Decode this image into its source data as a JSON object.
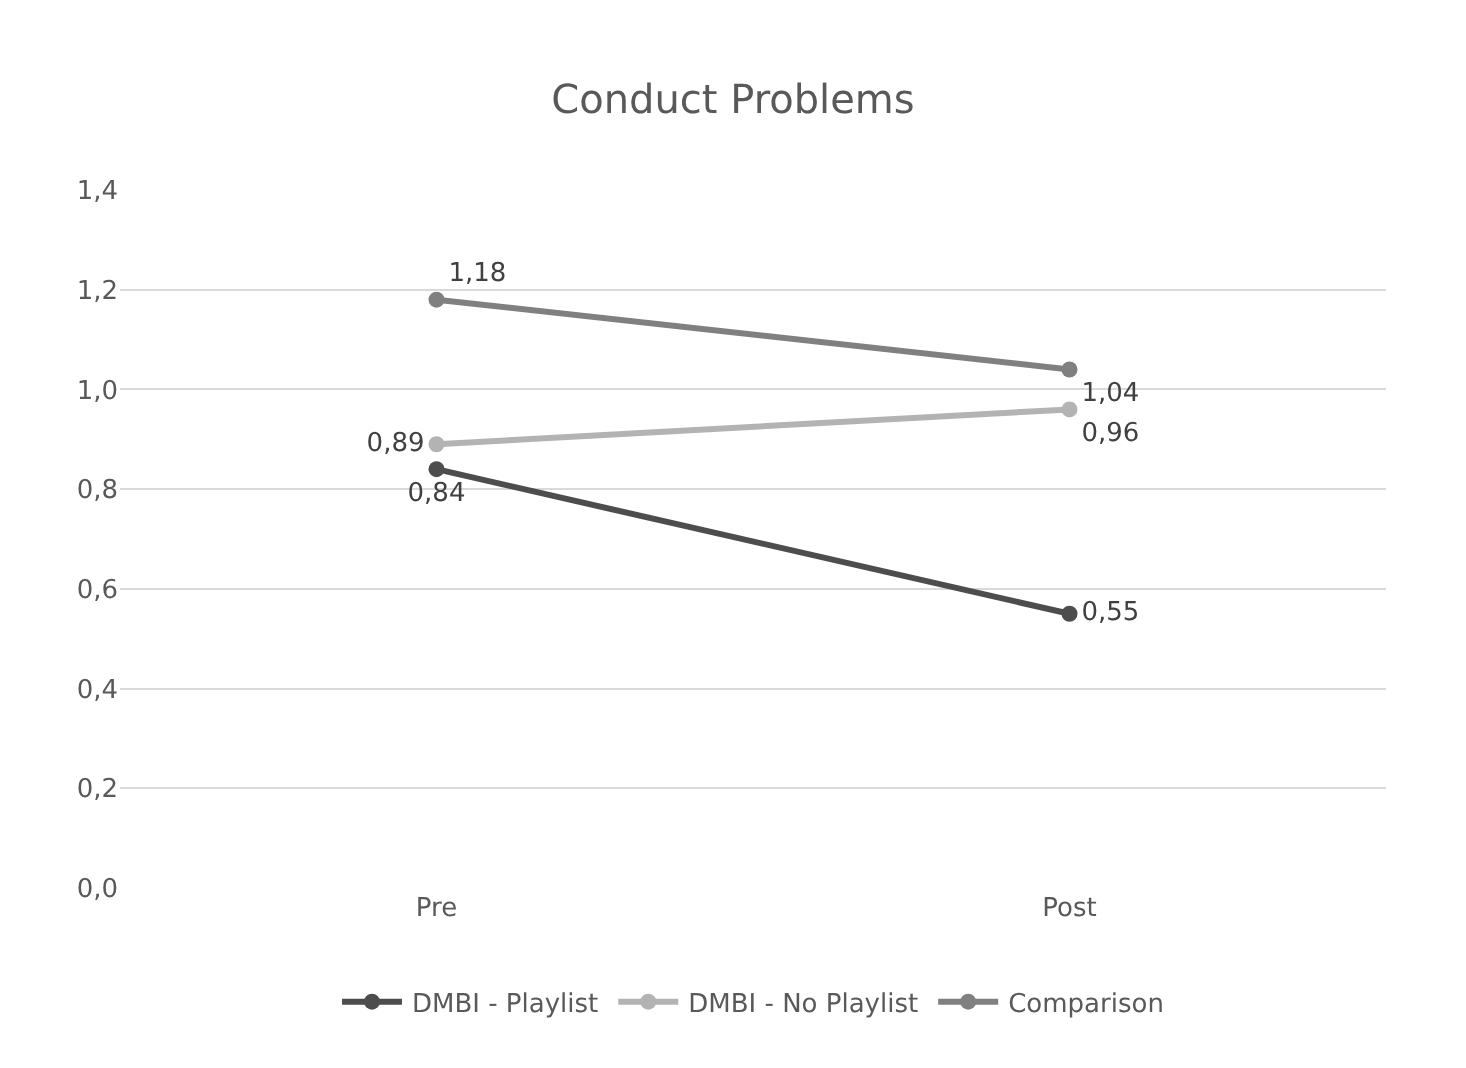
{
  "chart_data": {
    "type": "line",
    "title": "Conduct Problems",
    "categories": [
      "Pre",
      "Post"
    ],
    "series": [
      {
        "name": "DMBI - Playlist",
        "color": "#4d4d4d",
        "values": [
          0.84,
          0.55
        ],
        "value_labels": [
          "0,84",
          "0,55"
        ]
      },
      {
        "name": "DMBI - No Playlist",
        "color": "#b3b3b3",
        "values": [
          0.89,
          0.96
        ],
        "value_labels": [
          "0,89",
          "0,96"
        ]
      },
      {
        "name": "Comparison",
        "color": "#808080",
        "values": [
          1.18,
          1.04
        ],
        "value_labels": [
          "1,18",
          "1,04"
        ]
      }
    ],
    "ylim": [
      0,
      1.4
    ],
    "yticks": [
      {
        "value": 0,
        "label": "0,0"
      },
      {
        "value": 0.2,
        "label": "0,2"
      },
      {
        "value": 0.4,
        "label": "0,4"
      },
      {
        "value": 0.6,
        "label": "0,6"
      },
      {
        "value": 0.8,
        "label": "0,8"
      },
      {
        "value": 1.0,
        "label": "1,0"
      },
      {
        "value": 1.2,
        "label": "1,2"
      },
      {
        "value": 1.4,
        "label": "1,4"
      }
    ],
    "grid": "y",
    "legend": "bottom",
    "marker": "circle",
    "line_style": "solid"
  }
}
